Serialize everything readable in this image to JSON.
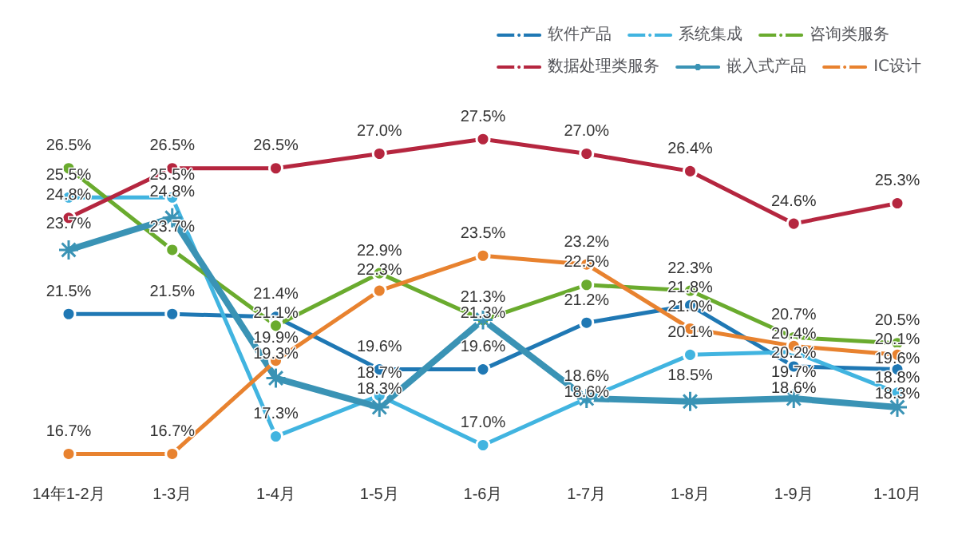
{
  "chart_data": {
    "type": "line",
    "categories": [
      "14年1-2月",
      "1-3月",
      "1-4月",
      "1-5月",
      "1-6月",
      "1-7月",
      "1-8月",
      "1-9月",
      "1-10月"
    ],
    "legend": "top right",
    "grid": false,
    "marker": "circle",
    "series": [
      {
        "name": "软件产品",
        "color": "#1f78b4",
        "values": [
          21.5,
          21.5,
          21.4,
          19.6,
          19.6,
          21.2,
          21.8,
          19.7,
          19.6
        ],
        "value_labels": [
          "21.5%",
          "21.5%",
          "21.4%",
          "19.6%",
          "19.6%",
          "21.2%",
          "21.8%",
          "19.7%",
          "19.6%"
        ]
      },
      {
        "name": "系统集成",
        "color": "#41b4e0",
        "values": [
          25.5,
          25.5,
          17.3,
          18.7,
          17.0,
          18.6,
          20.1,
          20.2,
          18.8
        ],
        "value_labels": [
          "25.5%",
          "25.5%",
          "17.3%",
          "18.7%",
          "17.0%",
          "18.6%",
          "20.1%",
          "20.2%",
          "18.8%"
        ]
      },
      {
        "name": "咨询类服务",
        "color": "#6aab2e",
        "values": [
          26.5,
          23.7,
          21.1,
          22.9,
          21.3,
          22.5,
          22.3,
          20.7,
          20.5
        ],
        "value_labels": [
          "26.5%",
          "23.7%",
          "21.1%",
          "22.9%",
          "21.3%",
          "22.5%",
          "22.3%",
          "20.7%",
          "20.5%"
        ]
      },
      {
        "name": "数据处理类服务",
        "color": "#b5263f",
        "values": [
          24.8,
          26.5,
          26.5,
          27.0,
          27.5,
          27.0,
          26.4,
          24.6,
          25.3
        ],
        "value_labels": [
          "24.8%",
          "26.5%",
          "26.5%",
          "27.0%",
          "27.5%",
          "27.0%",
          "26.4%",
          "24.6%",
          "25.3%"
        ]
      },
      {
        "name": "嵌入式产品",
        "color": "#3a93b5",
        "marker": "cross",
        "values": [
          23.7,
          24.8,
          19.3,
          18.3,
          21.3,
          18.6,
          18.5,
          18.6,
          18.3
        ],
        "value_labels": [
          "23.7%",
          "24.8%",
          "19.3%",
          "18.3%",
          "21.3%",
          "18.6%",
          "18.5%",
          "18.6%",
          "18.3%"
        ]
      },
      {
        "name": "IC设计",
        "color": "#e8822f",
        "values": [
          16.7,
          16.7,
          19.9,
          22.3,
          23.5,
          23.2,
          21.0,
          20.4,
          20.1
        ],
        "value_labels": [
          "16.7%",
          "16.7%",
          "19.9%",
          "22.3%",
          "23.5%",
          "23.2%",
          "21.0%",
          "20.4%",
          "20.1%"
        ]
      }
    ]
  }
}
